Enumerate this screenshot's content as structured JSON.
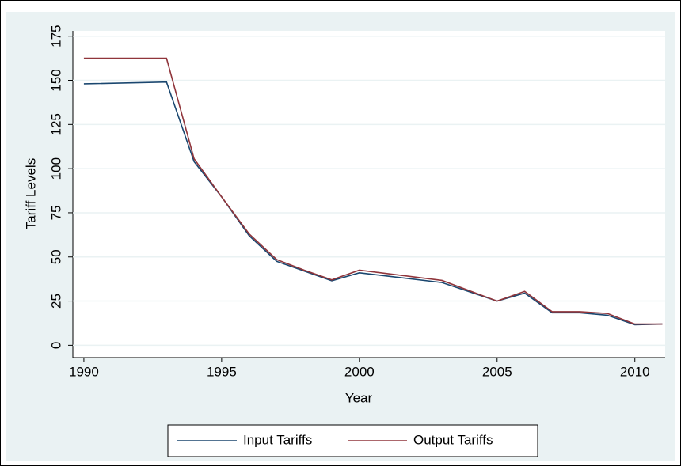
{
  "chart_data": {
    "type": "line",
    "x_label": "Year",
    "y_label": "Tariff Levels",
    "x": [
      1990,
      1993,
      1994,
      1995,
      1996,
      1997,
      1998,
      1999,
      2000,
      2003,
      2005,
      2006,
      2007,
      2008,
      2009,
      2010,
      2011
    ],
    "series": [
      {
        "name": "Input Tariffs",
        "color": "#1a476f",
        "values": [
          148,
          149,
          104,
          84,
          62,
          47.5,
          42,
          36.5,
          41,
          35.5,
          25,
          29.5,
          18.4,
          18.4,
          17,
          11.6,
          12
        ]
      },
      {
        "name": "Output Tariffs",
        "color": "#90353b",
        "values": [
          162.5,
          162.5,
          105.6,
          84,
          63,
          48.5,
          42.5,
          37,
          42.5,
          36.7,
          25,
          30.5,
          19,
          19,
          18,
          12,
          12
        ]
      }
    ],
    "xlim": [
      1989.6,
      2011.1
    ],
    "xticks": [
      1990,
      1995,
      2000,
      2005,
      2010
    ],
    "ylim": [
      -7,
      178
    ],
    "yticks": [
      0,
      25,
      50,
      75,
      100,
      125,
      150,
      175
    ],
    "grid": true,
    "legend": "bottom"
  }
}
